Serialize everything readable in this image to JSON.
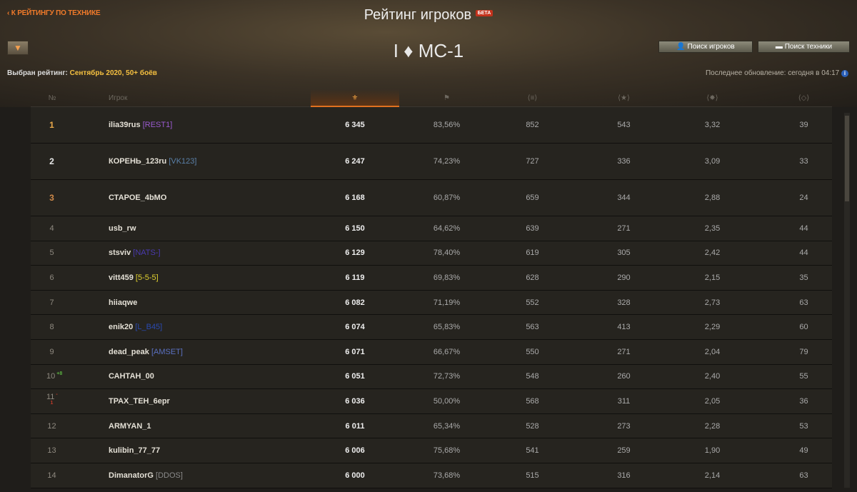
{
  "header": {
    "back_link": "К РЕЙТИНГУ ПО ТЕХНИКЕ",
    "title": "Рейтинг игроков",
    "beta": "БЕТА",
    "tank": "I ♦ МС-1",
    "selected_label": "Выбран рейтинг:",
    "selected_value": "Сентябрь 2020, 50+ боёв",
    "search_players": "Поиск игроков",
    "search_vehicles": "Поиск техники",
    "last_update": "Последнее обновление: сегодня в 04:17"
  },
  "columns": {
    "rank": "№",
    "player": "Игрок"
  },
  "colors": {
    "accent": "#f07a2a",
    "highlight": "#f5c040"
  },
  "rows": [
    {
      "rank": "1",
      "name": "ilia39rus",
      "clan": "[REST1]",
      "clan_color": "#9a5ad0",
      "rating": "6 345",
      "winrate": "83,56%",
      "dmg": "852",
      "xp": "543",
      "kills": "3,32",
      "spot": "39",
      "medal": true
    },
    {
      "rank": "2",
      "name": "КОРЕНЬ_123ru",
      "clan": "[VK123]",
      "clan_color": "#5a80a8",
      "rating": "6 247",
      "winrate": "74,23%",
      "dmg": "727",
      "xp": "336",
      "kills": "3,09",
      "spot": "33",
      "medal": true
    },
    {
      "rank": "3",
      "name": "СТАРОЕ_4bMO",
      "clan": "",
      "rating": "6 168",
      "winrate": "60,87%",
      "dmg": "659",
      "xp": "344",
      "kills": "2,88",
      "spot": "24",
      "medal": true
    },
    {
      "rank": "4",
      "name": "usb_rw",
      "clan": "",
      "rating": "6 150",
      "winrate": "64,62%",
      "dmg": "639",
      "xp": "271",
      "kills": "2,35",
      "spot": "44"
    },
    {
      "rank": "5",
      "name": "stsviv",
      "clan": "[NATS-]",
      "clan_color": "#4a3ab0",
      "rating": "6 129",
      "winrate": "78,40%",
      "dmg": "619",
      "xp": "305",
      "kills": "2,42",
      "spot": "44"
    },
    {
      "rank": "6",
      "name": "vitt459",
      "clan": "[5-5-5]",
      "clan_color": "#e0d030",
      "rating": "6 119",
      "winrate": "69,83%",
      "dmg": "628",
      "xp": "290",
      "kills": "2,15",
      "spot": "35"
    },
    {
      "rank": "7",
      "name": "hiiaqwe",
      "clan": "",
      "rating": "6 082",
      "winrate": "71,19%",
      "dmg": "552",
      "xp": "328",
      "kills": "2,73",
      "spot": "63"
    },
    {
      "rank": "8",
      "name": "enik20",
      "clan": "[L_B45]",
      "clan_color": "#2a4ab0",
      "rating": "6 074",
      "winrate": "65,83%",
      "dmg": "563",
      "xp": "413",
      "kills": "2,29",
      "spot": "60"
    },
    {
      "rank": "9",
      "name": "dead_peak",
      "clan": "[AMSET]",
      "clan_color": "#5a70c0",
      "rating": "6 071",
      "winrate": "66,67%",
      "dmg": "550",
      "xp": "271",
      "kills": "2,04",
      "spot": "79"
    },
    {
      "rank": "10",
      "change": "+8",
      "change_color": "#5ab040",
      "name": "САНТАН_00",
      "clan": "",
      "rating": "6 051",
      "winrate": "72,73%",
      "dmg": "548",
      "xp": "260",
      "kills": "2,40",
      "spot": "55"
    },
    {
      "rank": "11",
      "change": "-1",
      "change_color": "#c03a2a",
      "name": "ТРАХ_ТЕН_6epr",
      "clan": "",
      "rating": "6 036",
      "winrate": "50,00%",
      "dmg": "568",
      "xp": "311",
      "kills": "2,05",
      "spot": "36"
    },
    {
      "rank": "12",
      "name": "ARMYAN_1",
      "clan": "",
      "rating": "6 011",
      "winrate": "65,34%",
      "dmg": "528",
      "xp": "273",
      "kills": "2,28",
      "spot": "53"
    },
    {
      "rank": "13",
      "name": "kulibin_77_77",
      "clan": "",
      "rating": "6 006",
      "winrate": "75,68%",
      "dmg": "541",
      "xp": "259",
      "kills": "1,90",
      "spot": "49"
    },
    {
      "rank": "14",
      "name": "DimanatorG",
      "clan": "[DDOS]",
      "clan_color": "#8a8a8a",
      "rating": "6 000",
      "winrate": "73,68%",
      "dmg": "515",
      "xp": "316",
      "kills": "2,14",
      "spot": "63"
    }
  ]
}
